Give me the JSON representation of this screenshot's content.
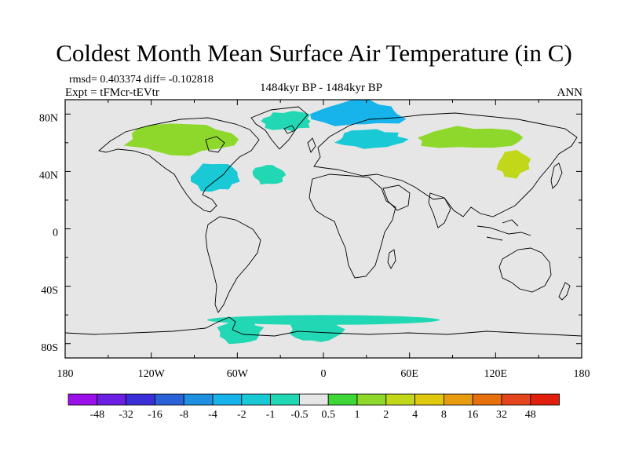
{
  "title": "Coldest Month Mean Surface Air Temperature (in C)",
  "stats": {
    "rmsd_label": "rmsd=",
    "rmsd": "0.403374",
    "diff_label": "diff=",
    "diff": "-0.102818"
  },
  "experiment": "Expt = tFMcr-tEVtr",
  "period": "1484kyr BP - 1484kyr BP",
  "season": "ANN",
  "axes": {
    "x_ticks": [
      "180",
      "120W",
      "60W",
      "0",
      "60E",
      "120E",
      "180"
    ],
    "y_ticks": [
      "80N",
      "40N",
      "0",
      "40S",
      "80S"
    ]
  },
  "colorbar": {
    "colors": [
      "#9b10e8",
      "#6a1fe2",
      "#3b2fd7",
      "#2a63d8",
      "#1f8fe0",
      "#16b4ea",
      "#19c9d6",
      "#22d8b4",
      "#e6e6e6",
      "#3fd637",
      "#8ed82c",
      "#c1d81a",
      "#e0c80e",
      "#e69c0e",
      "#e6700c",
      "#e4441a",
      "#e0200d"
    ],
    "labels": [
      "-48",
      "-32",
      "-16",
      "-8",
      "-4",
      "-2",
      "-1",
      "-0.5",
      "0.5",
      "1",
      "2",
      "4",
      "8",
      "16",
      "32",
      "48"
    ]
  },
  "chart_data": {
    "type": "filled-contour-map",
    "title": "Coldest Month Mean Surface Air Temperature (in C)",
    "units": "C",
    "x_range": [
      -180,
      180
    ],
    "y_range": [
      -90,
      90
    ],
    "levels": [
      -48,
      -32,
      -16,
      -8,
      -4,
      -2,
      -1,
      -0.5,
      0.5,
      1,
      2,
      4,
      8,
      16,
      32,
      48
    ],
    "background_class": [
      -0.5,
      0.5
    ],
    "anomaly_regions": [
      {
        "name": "arctic-ocean",
        "lon": [
          -10,
          60
        ],
        "lat": [
          70,
          90
        ],
        "range": [
          -4,
          -1
        ]
      },
      {
        "name": "greenland-iceland",
        "lon": [
          -45,
          -5
        ],
        "lat": [
          68,
          82
        ],
        "range": [
          -1,
          -0.5
        ]
      },
      {
        "name": "north-america-boreal",
        "lon": [
          -140,
          -60
        ],
        "lat": [
          50,
          75
        ],
        "range": [
          0.5,
          2
        ]
      },
      {
        "name": "east-north-america",
        "lon": [
          -95,
          -55
        ],
        "lat": [
          25,
          48
        ],
        "range": [
          -2,
          -0.5
        ]
      },
      {
        "name": "north-atlantic",
        "lon": [
          -50,
          -25
        ],
        "lat": [
          30,
          45
        ],
        "range": [
          -1,
          -0.5
        ]
      },
      {
        "name": "northern-europe",
        "lon": [
          5,
          60
        ],
        "lat": [
          55,
          70
        ],
        "range": [
          -2,
          -0.5
        ]
      },
      {
        "name": "siberia",
        "lon": [
          60,
          140
        ],
        "lat": [
          55,
          72
        ],
        "range": [
          0.5,
          2
        ]
      },
      {
        "name": "east-asia",
        "lon": [
          120,
          145
        ],
        "lat": [
          35,
          55
        ],
        "range": [
          0.5,
          4
        ]
      },
      {
        "name": "southern-ocean",
        "lon": [
          -180,
          180
        ],
        "lat": [
          -72,
          -55
        ],
        "range": [
          -1,
          1
        ]
      },
      {
        "name": "antarctic-peninsula",
        "lon": [
          -75,
          -40
        ],
        "lat": [
          -82,
          -62
        ],
        "range": [
          -1,
          -0.5
        ]
      },
      {
        "name": "south-atlantic",
        "lon": [
          -25,
          15
        ],
        "lat": [
          -80,
          -60
        ],
        "range": [
          -1,
          -0.5
        ]
      }
    ]
  }
}
